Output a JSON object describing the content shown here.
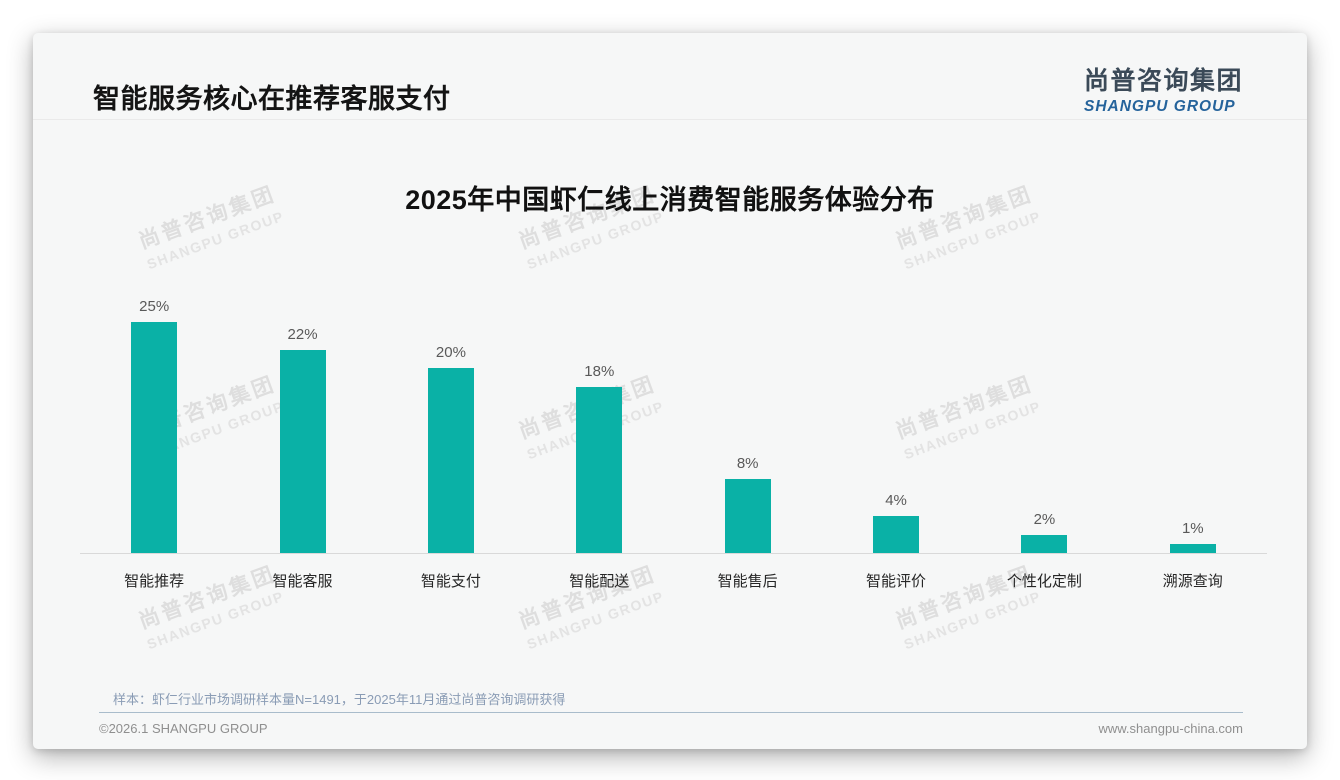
{
  "page": {
    "header_title": "智能服务核心在推荐客服支付",
    "logo": {
      "cn": "尚普咨询集团",
      "en": "SHANGPU GROUP"
    },
    "watermark": {
      "line1": "尚普咨询集团",
      "line2": "SHANGPU GROUP"
    },
    "footnote": "样本：虾仁行业市场调研样本量N=1491，于2025年11月通过尚普咨询调研获得",
    "footer_left": "©2026.1 SHANGPU GROUP",
    "footer_right": "www.shangpu-china.com"
  },
  "chart_data": {
    "type": "bar",
    "title": "2025年中国虾仁线上消费智能服务体验分布",
    "categories": [
      "智能推荐",
      "智能客服",
      "智能支付",
      "智能配送",
      "智能售后",
      "智能评价",
      "个性化定制",
      "溯源查询"
    ],
    "values": [
      25,
      22,
      20,
      18,
      8,
      4,
      2,
      1
    ],
    "value_labels": [
      "25%",
      "22%",
      "20%",
      "18%",
      "8%",
      "4%",
      "2%",
      "1%"
    ],
    "xlabel": "",
    "ylabel": "",
    "ylim": [
      0,
      26
    ],
    "grid": false,
    "legend_position": "none",
    "bar_color": "#0ab1a6",
    "axis_line_color": "#d9d9d9"
  }
}
